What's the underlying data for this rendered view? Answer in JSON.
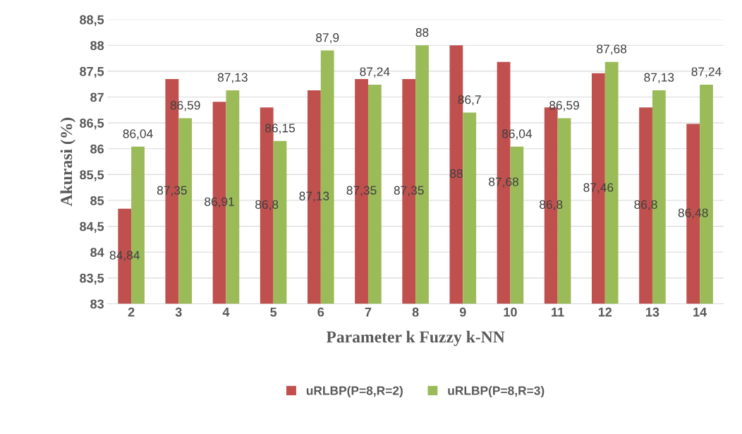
{
  "chart_data": {
    "type": "bar",
    "xlabel": "Parameter k Fuzzy k-NN",
    "ylabel": "Akurasi (%)",
    "categories": [
      "2",
      "3",
      "4",
      "5",
      "6",
      "7",
      "8",
      "9",
      "10",
      "11",
      "12",
      "13",
      "14"
    ],
    "series": [
      {
        "name": "uRLBP(P=8,R=2)",
        "color": "#c0504d",
        "values": [
          84.84,
          87.35,
          86.91,
          86.8,
          87.13,
          87.35,
          87.35,
          88,
          87.68,
          86.8,
          87.46,
          86.8,
          86.48
        ],
        "value_labels": [
          "84,84",
          "87,35",
          "86,91",
          "86,8",
          "87,13",
          "87,35",
          "87,35",
          "88",
          "87,68",
          "86,8",
          "87,46",
          "86,8",
          "86,48"
        ]
      },
      {
        "name": "uRLBP(P=8,R=3)",
        "color": "#9bbb59",
        "values": [
          86.04,
          86.59,
          87.13,
          86.15,
          87.9,
          87.24,
          88,
          86.7,
          86.04,
          86.59,
          87.68,
          87.13,
          87.24
        ],
        "value_labels": [
          "86,04",
          "86,59",
          "87,13",
          "86,15",
          "87,9",
          "87,24",
          "88",
          "86,7",
          "86,04",
          "86,59",
          "87,68",
          "87,13",
          "87,24"
        ]
      }
    ],
    "ylim": [
      83,
      88.5
    ],
    "yticks": [
      83,
      {
        "value": 83.5,
        "label": "83,5"
      },
      84,
      {
        "value": 84.5,
        "label": "84,5"
      },
      85,
      {
        "value": 85.5,
        "label": "85,5"
      },
      86,
      {
        "value": 86.5,
        "label": "86,5"
      },
      87,
      {
        "value": 87.5,
        "label": "87,5"
      },
      88,
      {
        "value": 88.5,
        "label": "88,5"
      }
    ],
    "grid": "y",
    "legend": "bottom"
  }
}
